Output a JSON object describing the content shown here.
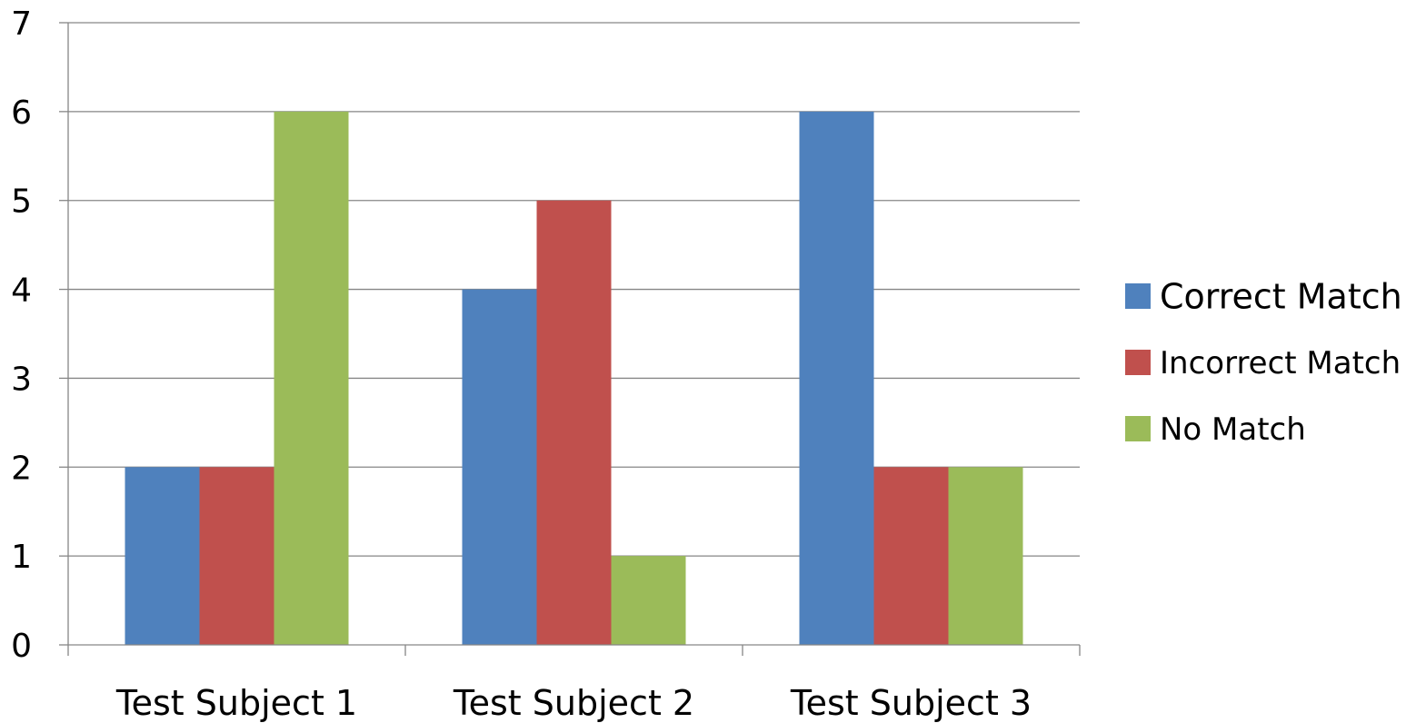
{
  "chart_data": {
    "type": "bar",
    "title": "",
    "xlabel": "",
    "ylabel": "",
    "categories": [
      "Test Subject 1",
      "Test Subject 2",
      "Test Subject 3"
    ],
    "series": [
      {
        "name": "Correct Match",
        "values": [
          2,
          4,
          6
        ],
        "color": "#4F81BD"
      },
      {
        "name": "Incorrect Match",
        "values": [
          2,
          5,
          2
        ],
        "color": "#C0504D"
      },
      {
        "name": "No Match",
        "values": [
          6,
          1,
          2
        ],
        "color": "#9BBB59"
      }
    ],
    "ylim": [
      0,
      7
    ],
    "yticks": [
      "0",
      "1",
      "2",
      "3",
      "4",
      "5",
      "6",
      "7"
    ],
    "grid": true,
    "legend_position": "right"
  }
}
